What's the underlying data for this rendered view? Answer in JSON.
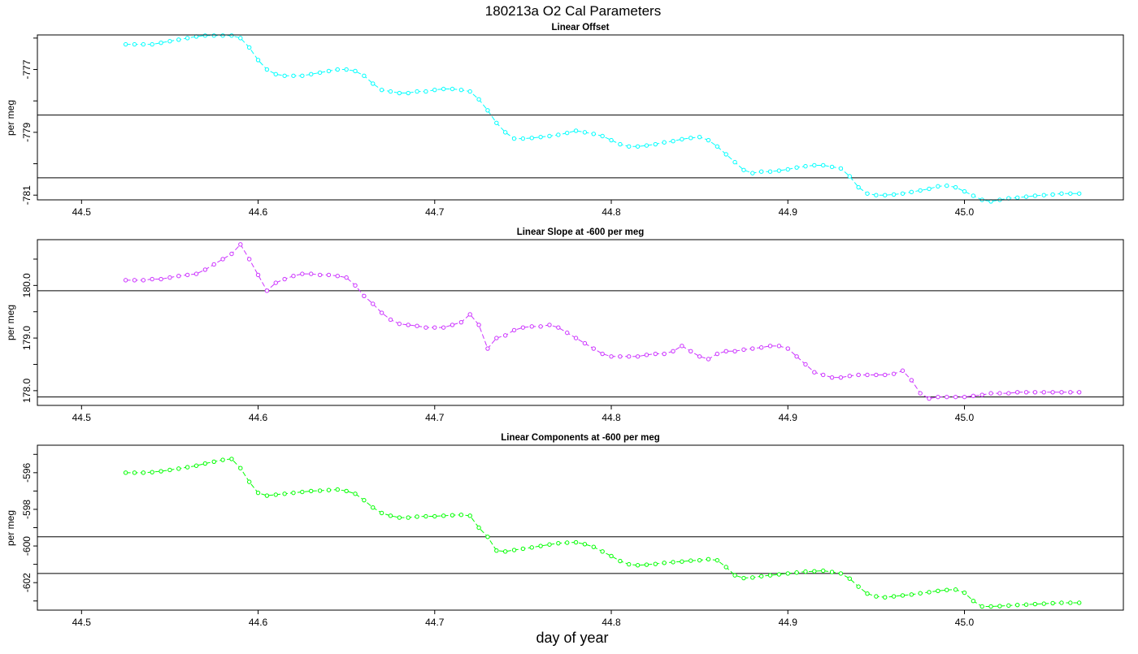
{
  "main_title": "180213a   O2 Cal Parameters",
  "x_axis_label": "day of year",
  "chart_data": [
    {
      "type": "line",
      "title": "Linear Offset",
      "ylabel": "per meg",
      "color": "#00ffff",
      "xlim": [
        44.475,
        45.09
      ],
      "ylim": [
        -781.15,
        -775.9
      ],
      "xticks": [
        44.5,
        44.6,
        44.7,
        44.8,
        44.9,
        45.0
      ],
      "xtick_labels": [
        "44.5",
        "44.6",
        "44.7",
        "44.8",
        "44.9",
        "45.0"
      ],
      "yticks": [
        -777,
        -779,
        -781
      ],
      "ytick_labels": [
        "-777",
        "-779",
        "-781"
      ],
      "yminor": [
        -776,
        -778,
        -780
      ],
      "hlines": [
        -778.45,
        -780.45
      ],
      "series": [
        {
          "x": [
            44.525,
            44.53,
            44.535,
            44.54,
            44.545,
            44.55,
            44.555,
            44.56,
            44.565,
            44.57,
            44.575,
            44.58,
            44.585,
            44.59,
            44.595,
            44.6,
            44.605,
            44.61,
            44.615,
            44.62,
            44.625,
            44.63,
            44.635,
            44.64,
            44.645,
            44.65,
            44.655,
            44.66,
            44.665,
            44.67,
            44.675,
            44.68,
            44.685,
            44.69,
            44.695,
            44.7,
            44.705,
            44.71,
            44.715,
            44.72,
            44.725,
            44.73,
            44.735,
            44.74,
            44.745,
            44.75,
            44.755,
            44.76,
            44.765,
            44.77,
            44.775,
            44.78,
            44.785,
            44.79,
            44.795,
            44.8,
            44.805,
            44.81,
            44.815,
            44.82,
            44.825,
            44.83,
            44.835,
            44.84,
            44.845,
            44.85,
            44.855,
            44.86,
            44.865,
            44.87,
            44.875,
            44.88,
            44.885,
            44.89,
            44.895,
            44.9,
            44.905,
            44.91,
            44.915,
            44.92,
            44.925,
            44.93,
            44.935,
            44.94,
            44.945,
            44.95,
            44.955,
            44.96,
            44.965,
            44.97,
            44.975,
            44.98,
            44.985,
            44.99,
            44.995,
            45.0,
            45.005,
            45.01,
            45.015,
            45.02,
            45.025,
            45.03,
            45.035,
            45.04,
            45.045,
            45.05,
            45.055,
            45.06,
            45.065
          ],
          "values": [
            -776.2,
            -776.2,
            -776.2,
            -776.2,
            -776.15,
            -776.1,
            -776.05,
            -776.0,
            -775.95,
            -775.92,
            -775.92,
            -775.92,
            -775.92,
            -776.0,
            -776.3,
            -776.7,
            -777.0,
            -777.15,
            -777.2,
            -777.2,
            -777.2,
            -777.15,
            -777.1,
            -777.05,
            -777.0,
            -777.0,
            -777.05,
            -777.2,
            -777.45,
            -777.65,
            -777.7,
            -777.75,
            -777.75,
            -777.7,
            -777.7,
            -777.65,
            -777.62,
            -777.62,
            -777.65,
            -777.7,
            -777.95,
            -778.3,
            -778.7,
            -779.0,
            -779.2,
            -779.2,
            -779.18,
            -779.15,
            -779.12,
            -779.08,
            -779.02,
            -778.95,
            -779.0,
            -779.05,
            -779.12,
            -779.25,
            -779.38,
            -779.45,
            -779.45,
            -779.42,
            -779.38,
            -779.32,
            -779.28,
            -779.22,
            -779.18,
            -779.15,
            -779.25,
            -779.45,
            -779.7,
            -779.95,
            -780.2,
            -780.3,
            -780.25,
            -780.25,
            -780.22,
            -780.18,
            -780.12,
            -780.08,
            -780.05,
            -780.05,
            -780.1,
            -780.15,
            -780.4,
            -780.75,
            -780.95,
            -781.0,
            -781.0,
            -780.98,
            -780.95,
            -780.9,
            -780.85,
            -780.8,
            -780.72,
            -780.7,
            -780.75,
            -780.88,
            -781.02,
            -781.15,
            -781.2,
            -781.15,
            -781.1,
            -781.08,
            -781.05,
            -781.02,
            -781.0,
            -780.98,
            -780.95,
            -780.95,
            -780.95
          ]
        }
      ]
    },
    {
      "type": "line",
      "title": "Linear Slope at -600 per meg",
      "ylabel": "per meg",
      "color": "#cc33ff",
      "xlim": [
        44.475,
        45.09
      ],
      "ylim": [
        177.72,
        180.87
      ],
      "xticks": [
        44.5,
        44.6,
        44.7,
        44.8,
        44.9,
        45.0
      ],
      "xtick_labels": [
        "44.5",
        "44.6",
        "44.7",
        "44.8",
        "44.9",
        "45.0"
      ],
      "yticks": [
        180.0,
        179.0,
        178.0
      ],
      "ytick_labels": [
        "180.0",
        "179.0",
        "178.0"
      ],
      "yminor": [
        180.5,
        179.5,
        178.5
      ],
      "hlines": [
        179.9,
        177.88
      ],
      "series": [
        {
          "x": [
            44.525,
            44.53,
            44.535,
            44.54,
            44.545,
            44.55,
            44.555,
            44.56,
            44.565,
            44.57,
            44.575,
            44.58,
            44.585,
            44.59,
            44.595,
            44.6,
            44.605,
            44.61,
            44.615,
            44.62,
            44.625,
            44.63,
            44.635,
            44.64,
            44.645,
            44.65,
            44.655,
            44.66,
            44.665,
            44.67,
            44.675,
            44.68,
            44.685,
            44.69,
            44.695,
            44.7,
            44.705,
            44.71,
            44.715,
            44.72,
            44.725,
            44.73,
            44.735,
            44.74,
            44.745,
            44.75,
            44.755,
            44.76,
            44.765,
            44.77,
            44.775,
            44.78,
            44.785,
            44.79,
            44.795,
            44.8,
            44.805,
            44.81,
            44.815,
            44.82,
            44.825,
            44.83,
            44.835,
            44.84,
            44.845,
            44.85,
            44.855,
            44.86,
            44.865,
            44.87,
            44.875,
            44.88,
            44.885,
            44.89,
            44.895,
            44.9,
            44.905,
            44.91,
            44.915,
            44.92,
            44.925,
            44.93,
            44.935,
            44.94,
            44.945,
            44.95,
            44.955,
            44.96,
            44.965,
            44.97,
            44.975,
            44.98,
            44.985,
            44.99,
            44.995,
            45.0,
            45.005,
            45.01,
            45.015,
            45.02,
            45.025,
            45.03,
            45.035,
            45.04,
            45.045,
            45.05,
            45.055,
            45.06,
            45.065
          ],
          "values": [
            180.1,
            180.1,
            180.1,
            180.12,
            180.12,
            180.15,
            180.18,
            180.2,
            180.22,
            180.3,
            180.4,
            180.5,
            180.6,
            180.78,
            180.5,
            180.2,
            179.9,
            180.05,
            180.12,
            180.18,
            180.22,
            180.22,
            180.2,
            180.2,
            180.18,
            180.15,
            180.0,
            179.8,
            179.65,
            179.48,
            179.35,
            179.27,
            179.25,
            179.23,
            179.2,
            179.2,
            179.2,
            179.25,
            179.3,
            179.45,
            179.25,
            178.8,
            179.0,
            179.05,
            179.15,
            179.2,
            179.22,
            179.22,
            179.25,
            179.2,
            179.1,
            179.0,
            178.9,
            178.8,
            178.7,
            178.65,
            178.65,
            178.65,
            178.65,
            178.68,
            178.7,
            178.7,
            178.75,
            178.85,
            178.75,
            178.65,
            178.6,
            178.7,
            178.75,
            178.75,
            178.78,
            178.8,
            178.82,
            178.85,
            178.85,
            178.8,
            178.65,
            178.5,
            178.35,
            178.3,
            178.25,
            178.25,
            178.28,
            178.3,
            178.3,
            178.3,
            178.3,
            178.32,
            178.38,
            178.2,
            177.95,
            177.85,
            177.88,
            177.88,
            177.88,
            177.88,
            177.9,
            177.92,
            177.95,
            177.95,
            177.95,
            177.97,
            177.97,
            177.97,
            177.97,
            177.97,
            177.97,
            177.97,
            177.97
          ]
        }
      ]
    },
    {
      "type": "line",
      "title": "Linear Components at -600 per meg",
      "ylabel": "per meg",
      "color": "#00ff00",
      "xlim": [
        44.475,
        45.09
      ],
      "ylim": [
        -603.5,
        -594.5
      ],
      "xticks": [
        44.5,
        44.6,
        44.7,
        44.8,
        44.9,
        45.0
      ],
      "xtick_labels": [
        "44.5",
        "44.6",
        "44.7",
        "44.8",
        "44.9",
        "45.0"
      ],
      "yticks": [
        -596,
        -598,
        -600,
        -602
      ],
      "ytick_labels": [
        "-596",
        "-598",
        "-600",
        "-602"
      ],
      "yminor": [
        -595,
        -597,
        -599,
        -601,
        -603
      ],
      "hlines": [
        -599.5,
        -601.5
      ],
      "series": [
        {
          "x": [
            44.525,
            44.53,
            44.535,
            44.54,
            44.545,
            44.55,
            44.555,
            44.56,
            44.565,
            44.57,
            44.575,
            44.58,
            44.585,
            44.59,
            44.595,
            44.6,
            44.605,
            44.61,
            44.615,
            44.62,
            44.625,
            44.63,
            44.635,
            44.64,
            44.645,
            44.65,
            44.655,
            44.66,
            44.665,
            44.67,
            44.675,
            44.68,
            44.685,
            44.69,
            44.695,
            44.7,
            44.705,
            44.71,
            44.715,
            44.72,
            44.725,
            44.73,
            44.735,
            44.74,
            44.745,
            44.75,
            44.755,
            44.76,
            44.765,
            44.77,
            44.775,
            44.78,
            44.785,
            44.79,
            44.795,
            44.8,
            44.805,
            44.81,
            44.815,
            44.82,
            44.825,
            44.83,
            44.835,
            44.84,
            44.845,
            44.85,
            44.855,
            44.86,
            44.865,
            44.87,
            44.875,
            44.88,
            44.885,
            44.89,
            44.895,
            44.9,
            44.905,
            44.91,
            44.915,
            44.92,
            44.925,
            44.93,
            44.935,
            44.94,
            44.945,
            44.95,
            44.955,
            44.96,
            44.965,
            44.97,
            44.975,
            44.98,
            44.985,
            44.99,
            44.995,
            45.0,
            45.005,
            45.01,
            45.015,
            45.02,
            45.025,
            45.03,
            45.035,
            45.04,
            45.045,
            45.05,
            45.055,
            45.06,
            45.065
          ],
          "values": [
            -596.0,
            -596.0,
            -596.0,
            -595.97,
            -595.92,
            -595.85,
            -595.78,
            -595.7,
            -595.62,
            -595.5,
            -595.4,
            -595.3,
            -595.25,
            -595.75,
            -596.5,
            -597.1,
            -597.25,
            -597.2,
            -597.15,
            -597.1,
            -597.05,
            -597.0,
            -596.98,
            -596.95,
            -596.92,
            -597.0,
            -597.15,
            -597.5,
            -597.9,
            -598.2,
            -598.35,
            -598.45,
            -598.45,
            -598.4,
            -598.38,
            -598.38,
            -598.35,
            -598.32,
            -598.3,
            -598.35,
            -599.0,
            -599.5,
            -600.25,
            -600.3,
            -600.22,
            -600.15,
            -600.08,
            -600.0,
            -599.92,
            -599.85,
            -599.82,
            -599.8,
            -599.9,
            -600.05,
            -600.3,
            -600.55,
            -600.82,
            -601.0,
            -601.05,
            -601.02,
            -600.98,
            -600.92,
            -600.88,
            -600.85,
            -600.8,
            -600.78,
            -600.72,
            -600.78,
            -601.15,
            -601.6,
            -601.75,
            -601.72,
            -601.65,
            -601.6,
            -601.55,
            -601.5,
            -601.45,
            -601.4,
            -601.38,
            -601.35,
            -601.42,
            -601.5,
            -601.78,
            -602.22,
            -602.6,
            -602.75,
            -602.8,
            -602.75,
            -602.7,
            -602.65,
            -602.58,
            -602.52,
            -602.45,
            -602.4,
            -602.38,
            -602.55,
            -603.0,
            -603.3,
            -603.3,
            -603.28,
            -603.25,
            -603.22,
            -603.2,
            -603.17,
            -603.15,
            -603.12,
            -603.1,
            -603.1,
            -603.1
          ]
        }
      ]
    }
  ]
}
